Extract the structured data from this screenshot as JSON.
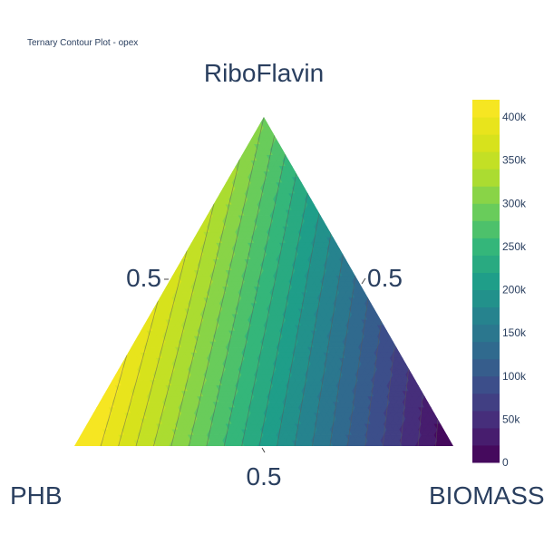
{
  "chart_data": {
    "type": "ternary-contour",
    "title": "Ternary Contour Plot - opex",
    "axes": {
      "top": {
        "title": "RiboFlavin",
        "tick": "0.5"
      },
      "left": {
        "title": "PHB",
        "tick": "0.5"
      },
      "right": {
        "title": "BIOMASS",
        "tick": "0.5"
      }
    },
    "right_tick_label": "0.5",
    "bottom_tick_label": "0.5",
    "vertex_values": {
      "RiboFlavin": 300000,
      "PHB": 430000,
      "BIOMASS": 0
    },
    "colorscale": "Viridis",
    "colorbar": {
      "range": [
        0,
        420000
      ],
      "ticks": [
        {
          "value": 0,
          "label": "0"
        },
        {
          "value": 50000,
          "label": "50k"
        },
        {
          "value": 100000,
          "label": "100k"
        },
        {
          "value": 150000,
          "label": "150k"
        },
        {
          "value": 200000,
          "label": "200k"
        },
        {
          "value": 250000,
          "label": "250k"
        },
        {
          "value": 300000,
          "label": "300k"
        },
        {
          "value": 350000,
          "label": "350k"
        },
        {
          "value": 400000,
          "label": "400k"
        }
      ],
      "n_bands": 21
    },
    "contour_interval": 20000
  }
}
